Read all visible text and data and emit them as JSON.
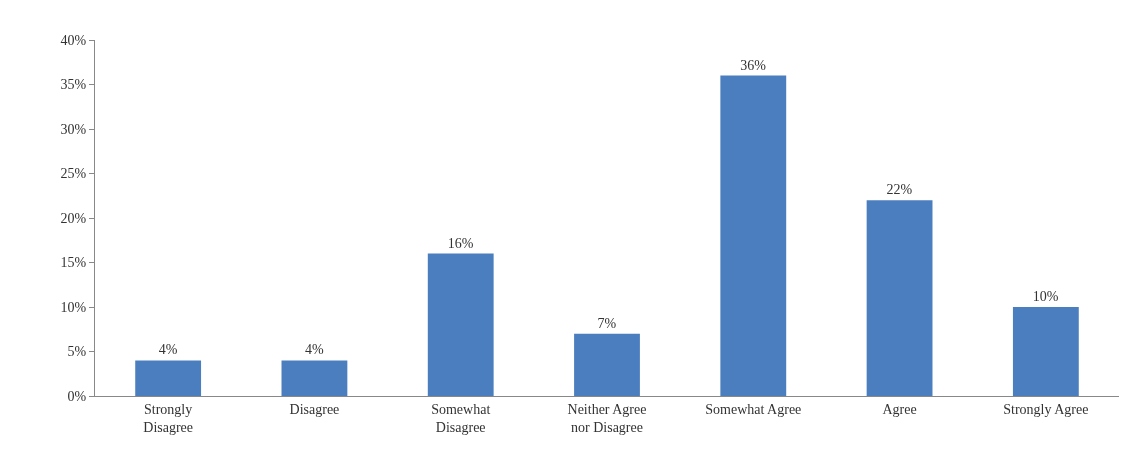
{
  "chart_data": {
    "type": "bar",
    "categories": [
      "Strongly Disagree",
      "Disagree",
      "Somewhat Disagree",
      "Neither Agree nor Disagree",
      "Somewhat Agree",
      "Agree",
      "Strongly Agree"
    ],
    "values": [
      4,
      4,
      16,
      7,
      36,
      22,
      10
    ],
    "value_labels": [
      "4%",
      "4%",
      "16%",
      "7%",
      "36%",
      "22%",
      "10%"
    ],
    "color": "#4a7ebf",
    "ylim": [
      0,
      40
    ],
    "yticks": [
      {
        "value": 0,
        "label": "0%"
      },
      {
        "value": 5,
        "label": "5%"
      },
      {
        "value": 10,
        "label": "10%"
      },
      {
        "value": 15,
        "label": "15%"
      },
      {
        "value": 20,
        "label": "20%"
      },
      {
        "value": 25,
        "label": "25%"
      },
      {
        "value": 30,
        "label": "30%"
      },
      {
        "value": 35,
        "label": "35%"
      },
      {
        "value": 40,
        "label": "40%"
      }
    ],
    "legend": false
  }
}
